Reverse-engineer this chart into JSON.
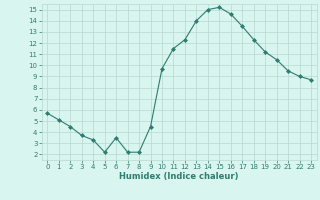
{
  "x": [
    0,
    1,
    2,
    3,
    4,
    5,
    6,
    7,
    8,
    9,
    10,
    11,
    12,
    13,
    14,
    15,
    16,
    17,
    18,
    19,
    20,
    21,
    22,
    23
  ],
  "y": [
    5.7,
    5.1,
    4.5,
    3.7,
    3.3,
    2.2,
    3.5,
    2.2,
    2.2,
    4.5,
    9.7,
    11.5,
    12.3,
    14.0,
    15.0,
    15.2,
    14.6,
    13.5,
    12.3,
    11.2,
    10.5,
    9.5,
    9.0,
    8.7
  ],
  "line_color": "#2e7d6e",
  "marker": "D",
  "marker_size": 2,
  "bg_color": "#d8f5f0",
  "grid_color": "#b8d8d0",
  "xlabel": "Humidex (Indice chaleur)",
  "xlabel_color": "#2e7d6e",
  "xlim": [
    -0.5,
    23.5
  ],
  "ylim": [
    1.5,
    15.5
  ],
  "yticks": [
    2,
    3,
    4,
    5,
    6,
    7,
    8,
    9,
    10,
    11,
    12,
    13,
    14,
    15
  ],
  "xticks": [
    0,
    1,
    2,
    3,
    4,
    5,
    6,
    7,
    8,
    9,
    10,
    11,
    12,
    13,
    14,
    15,
    16,
    17,
    18,
    19,
    20,
    21,
    22,
    23
  ]
}
